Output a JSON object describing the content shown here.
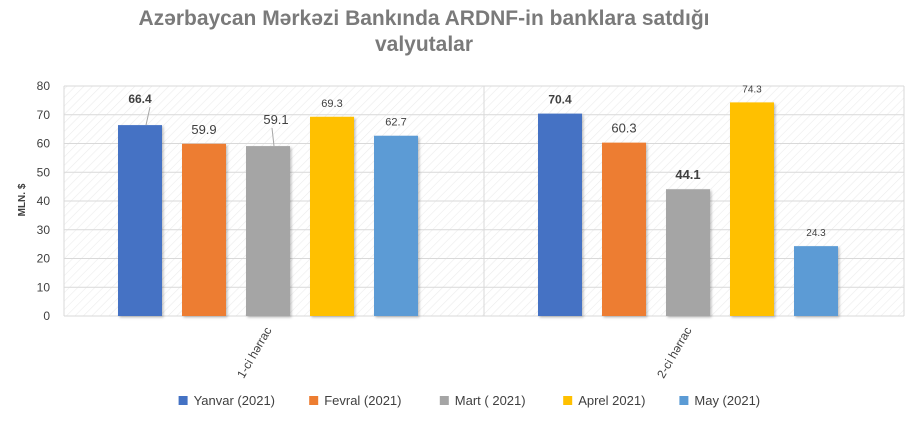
{
  "chart_data": {
    "type": "bar",
    "title": "Azərbaycan Mərkəzi Bankında ARDNF-in banklara satdığı valyutalar",
    "title_lines": [
      "Azərbaycan Mərkəzi Bankında ARDNF-in banklara satdığı",
      "valyutalar"
    ],
    "ylabel": "MLN. $",
    "xlabel": "",
    "ylim": [
      0,
      80
    ],
    "yticks": [
      0,
      10,
      20,
      30,
      40,
      50,
      60,
      70,
      80
    ],
    "grid": true,
    "legend_position": "bottom",
    "categories": [
      "1-ci hərrac",
      "2-ci hərrac"
    ],
    "series": [
      {
        "name": "Yanvar (2021)",
        "color": "#4472C4",
        "values": [
          66.4,
          70.4
        ]
      },
      {
        "name": "Fevral (2021)",
        "color": "#ED7D31",
        "values": [
          59.9,
          60.3
        ]
      },
      {
        "name": "Mart ( 2021)",
        "color": "#A5A5A5",
        "values": [
          59.1,
          44.1
        ]
      },
      {
        "name": "Aprel 2021)",
        "color": "#FFC000",
        "values": [
          69.3,
          74.3
        ]
      },
      {
        "name": "May (2021)",
        "color": "#5B9BD5",
        "values": [
          62.7,
          24.3
        ]
      }
    ]
  }
}
